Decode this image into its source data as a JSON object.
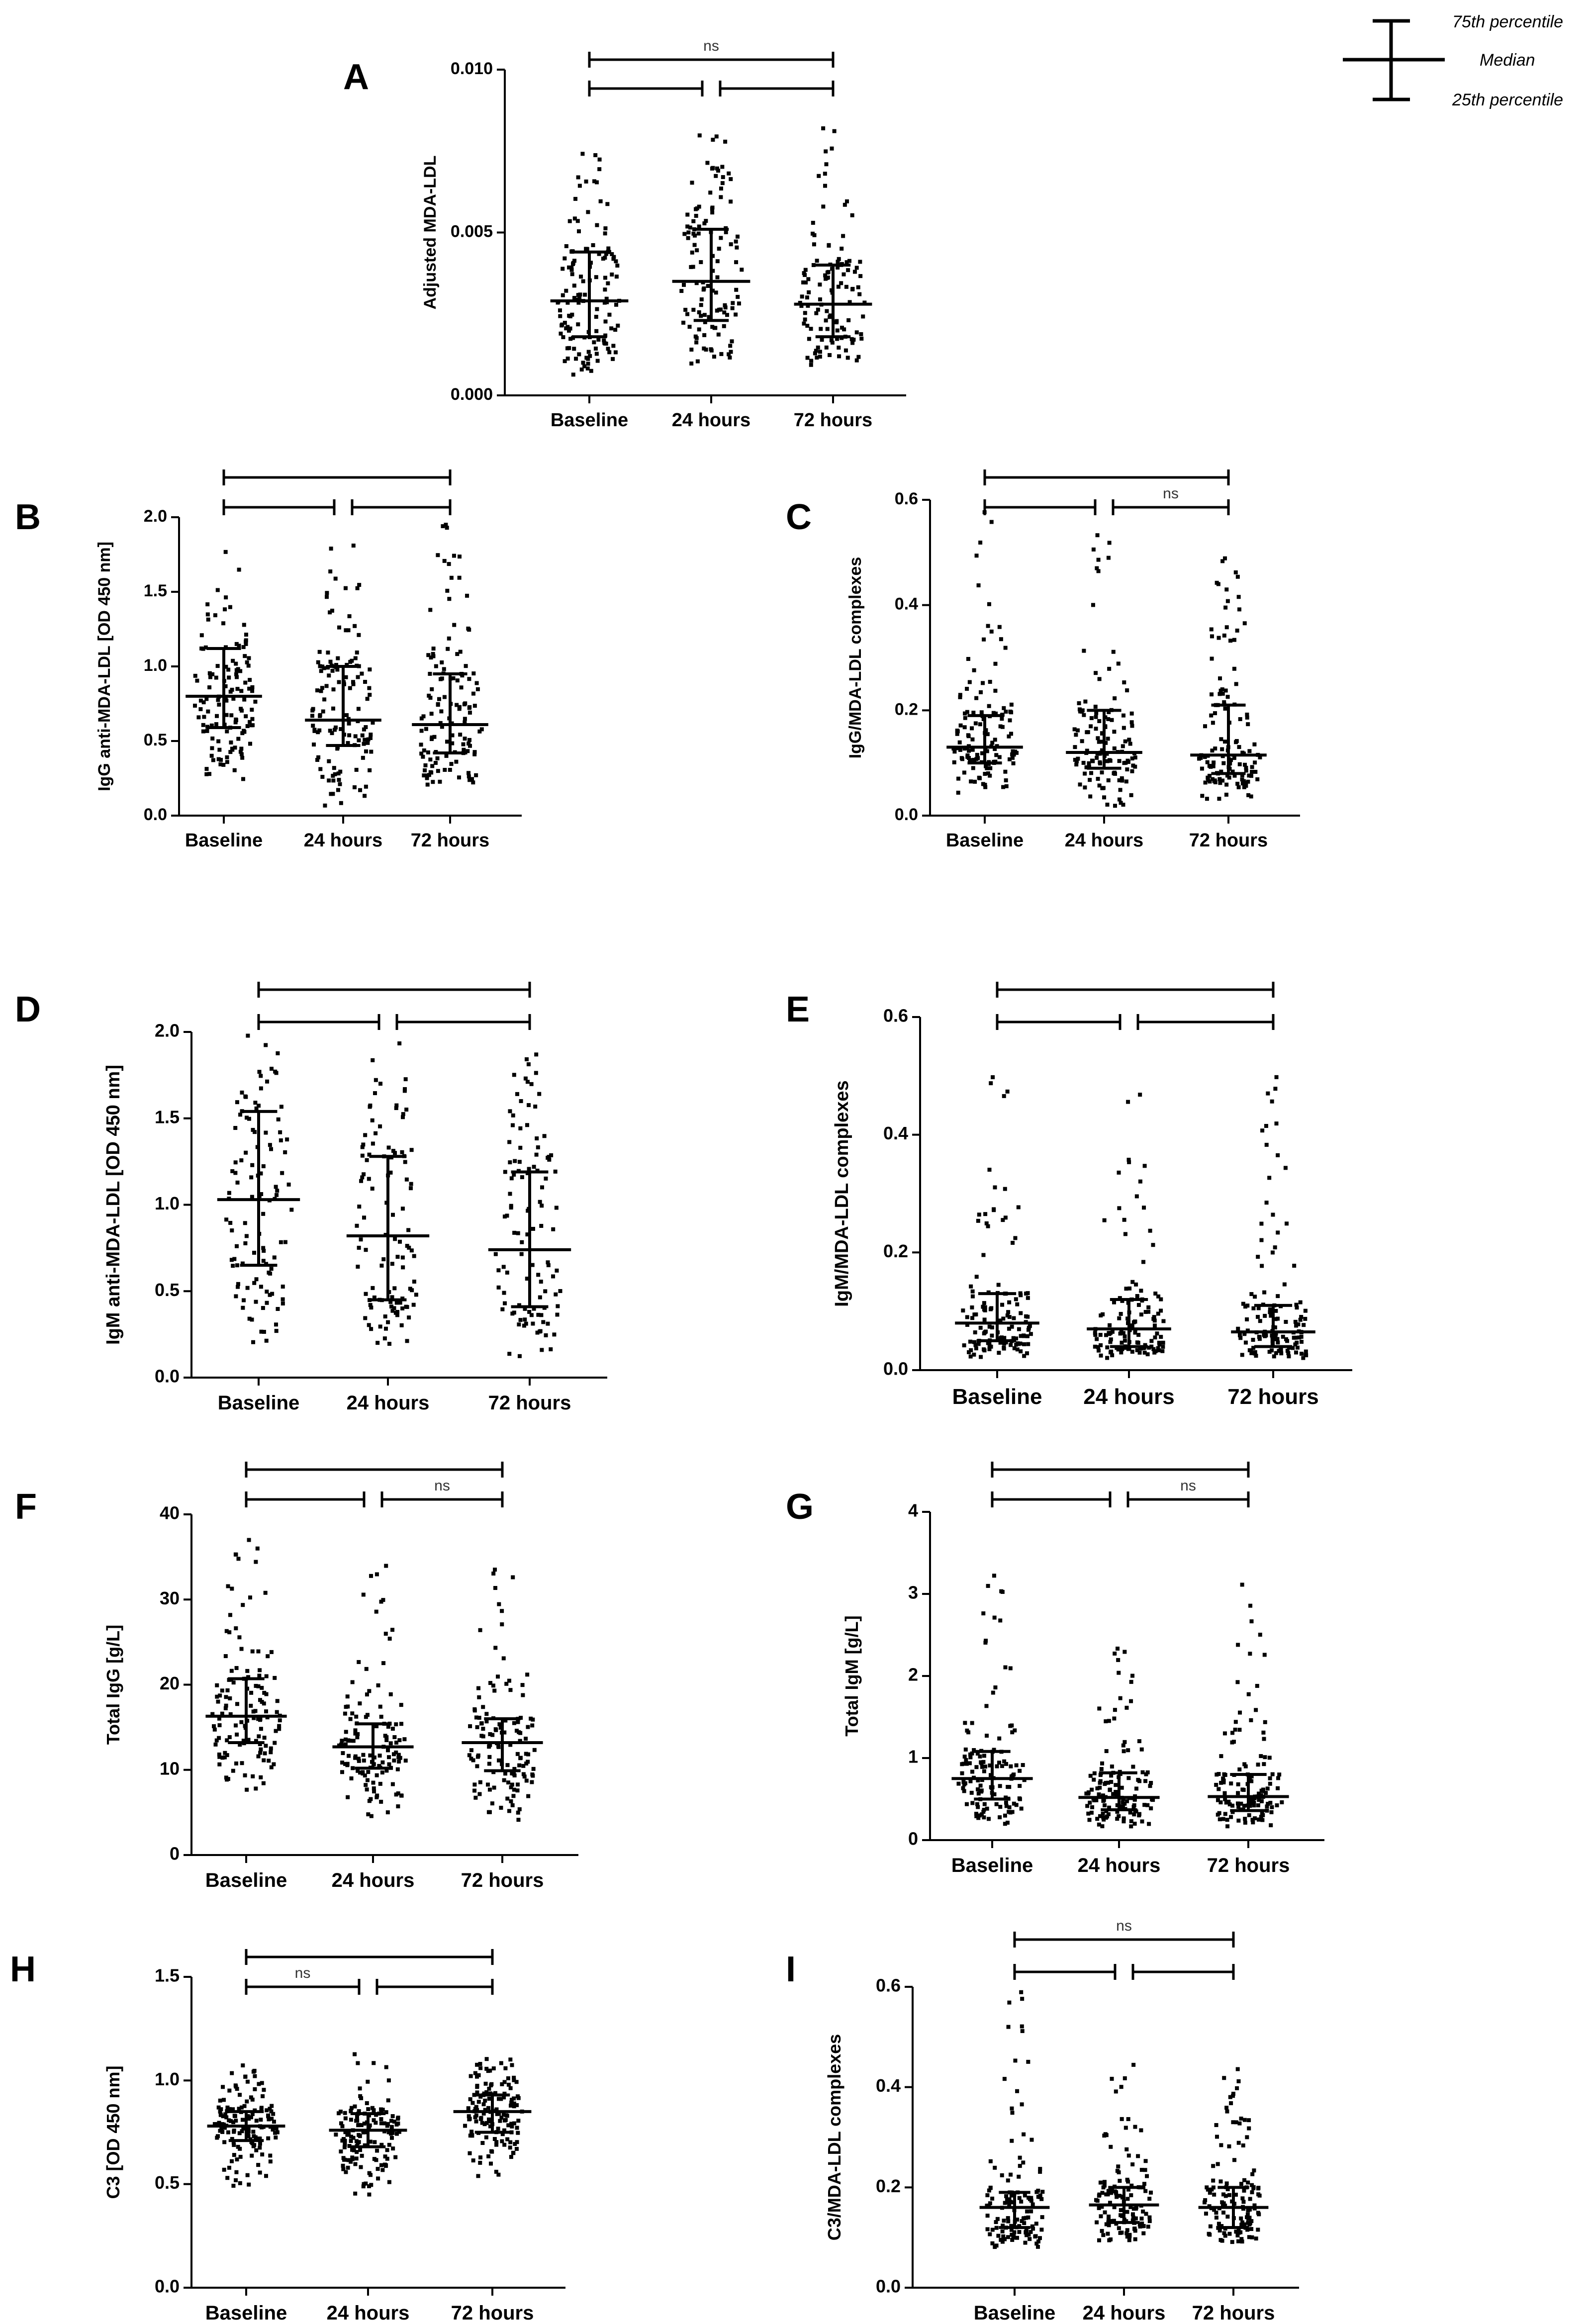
{
  "figure_legend": {
    "p75": "75th percentile",
    "median": "Median",
    "p25": "25th percentile"
  },
  "chart_data": [
    {
      "type": "scatter",
      "panel": "A",
      "ylabel": "Adjusted MDA-LDL",
      "categories": [
        "Baseline",
        "24 hours",
        "72 hours"
      ],
      "ylim": [
        0,
        0.01
      ],
      "yticks": [
        "0.000",
        "0.005",
        "0.010"
      ],
      "series": [
        {
          "category": "Baseline",
          "median": 0.0029,
          "q1": 0.0018,
          "q3": 0.0044,
          "min": 0.0006,
          "max": 0.0075,
          "n": 140
        },
        {
          "category": "24 hours",
          "median": 0.0035,
          "q1": 0.0023,
          "q3": 0.0051,
          "min": 0.0007,
          "max": 0.008,
          "n": 120
        },
        {
          "category": "72 hours",
          "median": 0.0028,
          "q1": 0.0018,
          "q3": 0.004,
          "min": 0.0008,
          "max": 0.0082,
          "n": 120
        }
      ],
      "brackets": [
        {
          "from": 0,
          "to": 2,
          "label": "ns"
        },
        {
          "from": 0,
          "to": 1,
          "label": ""
        },
        {
          "from": 1,
          "to": 2,
          "label": ""
        }
      ]
    },
    {
      "type": "scatter",
      "panel": "B",
      "ylabel": "IgG anti-MDA-LDL [OD 450 nm]",
      "categories": [
        "Baseline",
        "24 hours",
        "72 hours"
      ],
      "ylim": [
        0,
        2.0
      ],
      "yticks": [
        "0.0",
        "0.5",
        "1.0",
        "1.5",
        "2.0"
      ],
      "series": [
        {
          "category": "Baseline",
          "median": 0.8,
          "q1": 0.59,
          "q3": 1.12,
          "min": 0.2,
          "max": 1.78,
          "n": 130
        },
        {
          "category": "24 hours",
          "median": 0.64,
          "q1": 0.47,
          "q3": 1.0,
          "min": 0.05,
          "max": 1.85,
          "n": 130
        },
        {
          "category": "72 hours",
          "median": 0.61,
          "q1": 0.42,
          "q3": 0.95,
          "min": 0.12,
          "max": 1.95,
          "n": 130
        }
      ],
      "brackets": [
        {
          "from": 0,
          "to": 2,
          "label": ""
        },
        {
          "from": 0,
          "to": 1,
          "label": ""
        },
        {
          "from": 1,
          "to": 2,
          "label": ""
        }
      ]
    },
    {
      "type": "scatter",
      "panel": "C",
      "ylabel": "IgG/MDA-LDL complexes",
      "categories": [
        "Baseline",
        "24 hours",
        "72 hours"
      ],
      "ylim": [
        0,
        0.6
      ],
      "yticks": [
        "0.0",
        "0.2",
        "0.4",
        "0.6"
      ],
      "series": [
        {
          "category": "Baseline",
          "median": 0.13,
          "q1": 0.1,
          "q3": 0.19,
          "min": 0.03,
          "max": 0.58,
          "n": 130
        },
        {
          "category": "24 hours",
          "median": 0.12,
          "q1": 0.09,
          "q3": 0.2,
          "min": 0.01,
          "max": 0.55,
          "n": 130
        },
        {
          "category": "72 hours",
          "median": 0.115,
          "q1": 0.08,
          "q3": 0.21,
          "min": 0.03,
          "max": 0.51,
          "n": 130
        }
      ],
      "brackets": [
        {
          "from": 0,
          "to": 2,
          "label": ""
        },
        {
          "from": 0,
          "to": 1,
          "label": ""
        },
        {
          "from": 1,
          "to": 2,
          "label": "ns"
        }
      ]
    },
    {
      "type": "scatter",
      "panel": "D",
      "ylabel": "IgM anti-MDA-LDL [OD 450 nm]",
      "categories": [
        "Baseline",
        "24 hours",
        "72 hours"
      ],
      "ylim": [
        0,
        2.0
      ],
      "yticks": [
        "0.0",
        "0.5",
        "1.0",
        "1.5",
        "2.0"
      ],
      "series": [
        {
          "category": "Baseline",
          "median": 1.03,
          "q1": 0.65,
          "q3": 1.54,
          "min": 0.18,
          "max": 2.0,
          "n": 110
        },
        {
          "category": "24 hours",
          "median": 0.82,
          "q1": 0.45,
          "q3": 1.28,
          "min": 0.18,
          "max": 1.95,
          "n": 110
        },
        {
          "category": "72 hours",
          "median": 0.74,
          "q1": 0.41,
          "q3": 1.19,
          "min": 0.1,
          "max": 1.88,
          "n": 110
        }
      ],
      "brackets": [
        {
          "from": 0,
          "to": 2,
          "label": ""
        },
        {
          "from": 0,
          "to": 1,
          "label": ""
        },
        {
          "from": 1,
          "to": 2,
          "label": ""
        }
      ]
    },
    {
      "type": "scatter",
      "panel": "E",
      "ylabel": "IgM/MDA-LDL complexes",
      "categories": [
        "Baseline",
        "24 hours",
        "72 hours"
      ],
      "ylim": [
        0,
        0.6
      ],
      "yticks": [
        "0.0",
        "0.2",
        "0.4",
        "0.6"
      ],
      "series": [
        {
          "category": "Baseline",
          "median": 0.08,
          "q1": 0.05,
          "q3": 0.13,
          "min": 0.02,
          "max": 0.52,
          "n": 130
        },
        {
          "category": "24 hours",
          "median": 0.07,
          "q1": 0.04,
          "q3": 0.12,
          "min": 0.02,
          "max": 0.55,
          "n": 130
        },
        {
          "category": "72 hours",
          "median": 0.065,
          "q1": 0.04,
          "q3": 0.11,
          "min": 0.02,
          "max": 0.5,
          "n": 130
        }
      ],
      "brackets": [
        {
          "from": 0,
          "to": 2,
          "label": ""
        },
        {
          "from": 0,
          "to": 1,
          "label": ""
        },
        {
          "from": 1,
          "to": 2,
          "label": ""
        }
      ]
    },
    {
      "type": "scatter",
      "panel": "F",
      "ylabel": "Total IgG [g/L]",
      "categories": [
        "Baseline",
        "24 hours",
        "72 hours"
      ],
      "ylim": [
        0,
        40
      ],
      "yticks": [
        "0",
        "10",
        "20",
        "30",
        "40"
      ],
      "series": [
        {
          "category": "Baseline",
          "median": 16.3,
          "q1": 13.2,
          "q3": 20.7,
          "min": 7.5,
          "max": 37.0,
          "n": 130
        },
        {
          "category": "24 hours",
          "median": 12.7,
          "q1": 10.2,
          "q3": 15.4,
          "min": 4.0,
          "max": 35.0,
          "n": 130
        },
        {
          "category": "72 hours",
          "median": 13.2,
          "q1": 9.9,
          "q3": 16.0,
          "min": 3.5,
          "max": 37.0,
          "n": 130
        }
      ],
      "brackets": [
        {
          "from": 0,
          "to": 2,
          "label": ""
        },
        {
          "from": 0,
          "to": 1,
          "label": ""
        },
        {
          "from": 1,
          "to": 2,
          "label": "ns"
        }
      ]
    },
    {
      "type": "scatter",
      "panel": "G",
      "ylabel": "Total IgM [g/L]",
      "categories": [
        "Baseline",
        "24 hours",
        "72 hours"
      ],
      "ylim": [
        0,
        4
      ],
      "yticks": [
        "0",
        "1",
        "2",
        "3",
        "4"
      ],
      "series": [
        {
          "category": "Baseline",
          "median": 0.75,
          "q1": 0.5,
          "q3": 1.08,
          "min": 0.15,
          "max": 3.45,
          "n": 130
        },
        {
          "category": "24 hours",
          "median": 0.52,
          "q1": 0.37,
          "q3": 0.82,
          "min": 0.1,
          "max": 2.4,
          "n": 130
        },
        {
          "category": "72 hours",
          "median": 0.53,
          "q1": 0.36,
          "q3": 0.8,
          "min": 0.1,
          "max": 3.25,
          "n": 130
        }
      ],
      "brackets": [
        {
          "from": 0,
          "to": 2,
          "label": ""
        },
        {
          "from": 0,
          "to": 1,
          "label": ""
        },
        {
          "from": 1,
          "to": 2,
          "label": "ns"
        }
      ]
    },
    {
      "type": "scatter",
      "panel": "H",
      "ylabel": "C3 [OD 450 nm]",
      "categories": [
        "Baseline",
        "24 hours",
        "72 hours"
      ],
      "ylim": [
        0,
        1.5
      ],
      "yticks": [
        "0.0",
        "0.5",
        "1.0",
        "1.5"
      ],
      "series": [
        {
          "category": "Baseline",
          "median": 0.78,
          "q1": 0.71,
          "q3": 0.85,
          "min": 0.48,
          "max": 1.08,
          "n": 140
        },
        {
          "category": "24 hours",
          "median": 0.76,
          "q1": 0.68,
          "q3": 0.84,
          "min": 0.44,
          "max": 1.13,
          "n": 140
        },
        {
          "category": "72 hours",
          "median": 0.85,
          "q1": 0.75,
          "q3": 0.93,
          "min": 0.52,
          "max": 1.14,
          "n": 140
        }
      ],
      "brackets": [
        {
          "from": 0,
          "to": 2,
          "label": ""
        },
        {
          "from": 0,
          "to": 1,
          "label": "ns"
        },
        {
          "from": 1,
          "to": 2,
          "label": ""
        }
      ]
    },
    {
      "type": "scatter",
      "panel": "I",
      "ylabel": "C3/MDA-LDL complexes",
      "categories": [
        "Baseline",
        "24 hours",
        "72 hours"
      ],
      "ylim": [
        0,
        0.6
      ],
      "yticks": [
        "0.0",
        "0.2",
        "0.4",
        "0.6"
      ],
      "series": [
        {
          "category": "Baseline",
          "median": 0.16,
          "q1": 0.12,
          "q3": 0.19,
          "min": 0.08,
          "max": 0.6,
          "n": 130
        },
        {
          "category": "24 hours",
          "median": 0.165,
          "q1": 0.13,
          "q3": 0.2,
          "min": 0.09,
          "max": 0.48,
          "n": 130
        },
        {
          "category": "72 hours",
          "median": 0.16,
          "q1": 0.12,
          "q3": 0.2,
          "min": 0.08,
          "max": 0.44,
          "n": 130
        }
      ],
      "brackets": [
        {
          "from": 0,
          "to": 2,
          "label": "ns"
        },
        {
          "from": 0,
          "to": 1,
          "label": ""
        },
        {
          "from": 1,
          "to": 2,
          "label": ""
        }
      ]
    }
  ]
}
